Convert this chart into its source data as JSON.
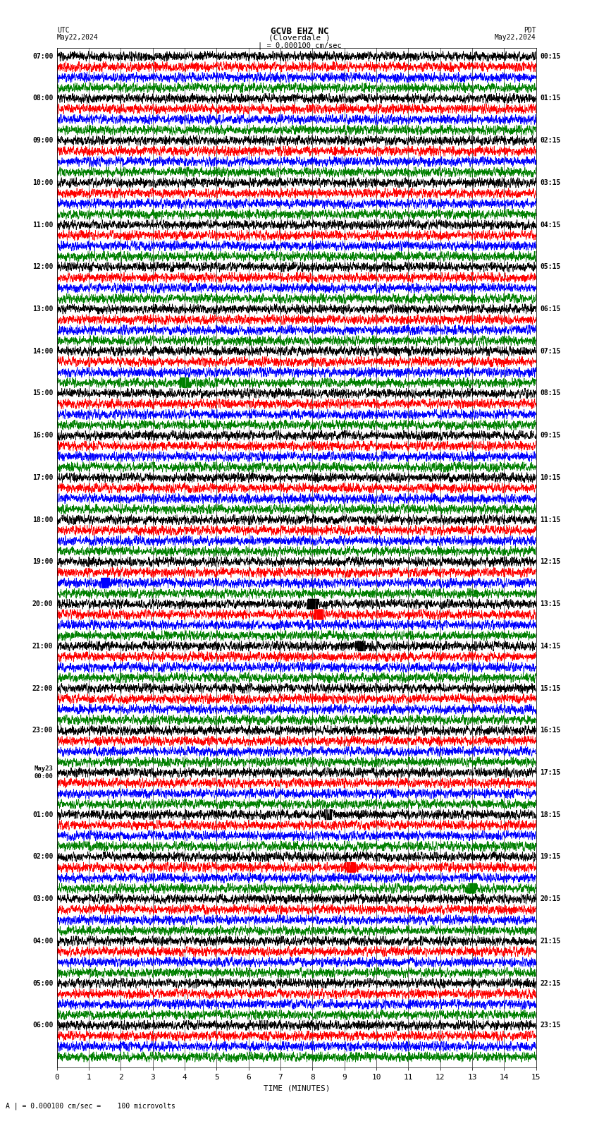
{
  "title_line1": "GCVB EHZ NC",
  "title_line2": "(Cloverdale )",
  "title_line3": "| = 0.000100 cm/sec",
  "left_label_top": "UTC",
  "left_label_date": "May22,2024",
  "right_label_top": "PDT",
  "right_label_date": "May22,2024",
  "xlabel": "TIME (MINUTES)",
  "footer": "A | = 0.000100 cm/sec =    100 microvolts",
  "utc_labels": [
    "07:00",
    "08:00",
    "09:00",
    "10:00",
    "11:00",
    "12:00",
    "13:00",
    "14:00",
    "15:00",
    "16:00",
    "17:00",
    "18:00",
    "19:00",
    "20:00",
    "21:00",
    "22:00",
    "23:00",
    "May23\n00:00",
    "01:00",
    "02:00",
    "03:00",
    "04:00",
    "05:00",
    "06:00"
  ],
  "pdt_labels": [
    "00:15",
    "01:15",
    "02:15",
    "03:15",
    "04:15",
    "05:15",
    "06:15",
    "07:15",
    "08:15",
    "09:15",
    "10:15",
    "11:15",
    "12:15",
    "13:15",
    "14:15",
    "15:15",
    "16:15",
    "17:15",
    "18:15",
    "19:15",
    "20:15",
    "21:15",
    "22:15",
    "23:15"
  ],
  "n_rows": 96,
  "colors": [
    "black",
    "red",
    "blue",
    "green"
  ],
  "bg_color": "white",
  "noise_amplitude": 0.28,
  "x_ticks": [
    0,
    1,
    2,
    3,
    4,
    5,
    6,
    7,
    8,
    9,
    10,
    11,
    12,
    13,
    14,
    15
  ],
  "x_min": 0,
  "x_max": 15,
  "events": [
    {
      "row": 31,
      "x": 4.0,
      "amp": 2.5,
      "color_idx": 3
    },
    {
      "row": 50,
      "x": 1.5,
      "amp": 2.0,
      "color_idx": 2
    },
    {
      "row": 52,
      "x": 8.0,
      "amp": 4.0,
      "color_idx": 2
    },
    {
      "row": 53,
      "x": 8.2,
      "amp": 5.0,
      "color_idx": 0
    },
    {
      "row": 77,
      "x": 9.2,
      "amp": 3.0,
      "color_idx": 2
    },
    {
      "row": 79,
      "x": 13.0,
      "amp": 2.0,
      "color_idx": 0
    },
    {
      "row": 56,
      "x": 9.5,
      "amp": 1.5,
      "color_idx": 3
    },
    {
      "row": 72,
      "x": 8.5,
      "amp": 1.5,
      "color_idx": 0
    }
  ]
}
